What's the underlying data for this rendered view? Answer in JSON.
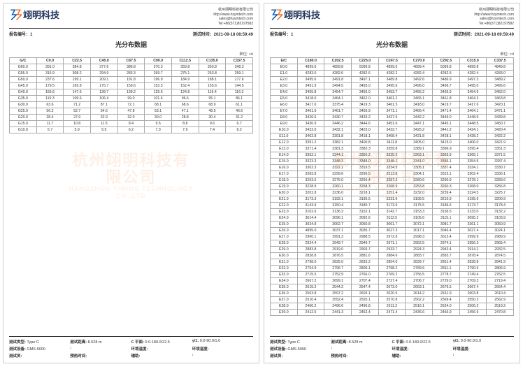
{
  "company": {
    "logo_text": "翊明科技",
    "name_full": "杭州翊明科技有限公司",
    "website": "http://www.hzymtech.com",
    "email": "sales@hzymtech.com",
    "phone": "Tel:+86(571)82197582"
  },
  "meta": {
    "report_no_label": "报告编号：",
    "report_no": "1",
    "test_time_label": "测试时间：",
    "test_time1": "2021-09-18 08:59:49",
    "test_time2": "2021-09-18 09:59:49"
  },
  "titles": {
    "left": "光分布数据",
    "right": "光分布数据",
    "unit": "单位: cd"
  },
  "watermark": {
    "zh": "杭州翊明科技有限公司",
    "en": "HANGZHOU YIMING TECHNOLOGY CO.,LTD"
  },
  "left_table": {
    "headers": [
      "G/C",
      "C0.0",
      "C22.5",
      "C45.0",
      "C67.5",
      "C90.0",
      "C112.5",
      "C135.0",
      "C157.5"
    ],
    "rows": [
      [
        "G60.0",
        "391.0",
        "384.8",
        "377.6",
        "386.8",
        "370.3",
        "359.8",
        "350.8",
        "348.3"
      ],
      [
        "G55.0",
        "316.9",
        "308.2",
        "294.9",
        "283.3",
        "269.7",
        "275.1",
        "263.8",
        "259.1"
      ],
      [
        "G50.0",
        "237.6",
        "199.1",
        "209.1",
        "191.8",
        "196.9",
        "184.9",
        "188.1",
        "177.6"
      ],
      [
        "G45.0",
        "179.5",
        "165.8",
        "175.7",
        "159.6",
        "153.3",
        "152.4",
        "155.6",
        "144.5"
      ],
      [
        "G40.0",
        "155.6",
        "147.6",
        "139.7",
        "139.2",
        "129.5",
        "124.8",
        "119.4",
        "116.3"
      ],
      [
        "G35.0",
        "110.3",
        "109.6",
        "106.4",
        "99.0",
        "101.6",
        "96.6",
        "95.1",
        "86.1"
      ],
      [
        "G30.0",
        "63.6",
        "71.2",
        "87.1",
        "72.1",
        "68.1",
        "68.6",
        "68.9",
        "61.1"
      ],
      [
        "G25.0",
        "56.2",
        "52.7",
        "54.6",
        "47.8",
        "53.1",
        "47.1",
        "48.5",
        "46.6"
      ],
      [
        "G20.0",
        "28.4",
        "27.9",
        "32.9",
        "32.0",
        "30.0",
        "28.8",
        "30.4",
        "31.2"
      ],
      [
        "G15.0",
        "11.7",
        "10.8",
        "11.5",
        "8.4",
        "9.5",
        "8.8",
        "9.6",
        "6.7"
      ],
      [
        "G10.0",
        "5.7",
        "5.9",
        "5.5",
        "6.2",
        "7.3",
        "7.9",
        "7.4",
        "6.2"
      ]
    ]
  },
  "right_table": {
    "headers": [
      "E/C",
      "C180.0",
      "C202.5",
      "C225.0",
      "C247.5",
      "C270.0",
      "C292.5",
      "C315.0",
      "C337.5"
    ],
    "rows": [
      [
        "E0.0",
        "4899.6",
        "4899.8",
        "5099.8",
        "4899.5",
        "4899.4",
        "5099.8",
        "4899.8",
        "4849.8"
      ],
      [
        "E1.0",
        "4283.0",
        "4282.6",
        "4282.6",
        "4282.2",
        "4282.4",
        "4282.5",
        "4282.4",
        "4283.0"
      ],
      [
        "E2.0",
        "3495.6",
        "3491.8",
        "3497.1",
        "3489.8",
        "3492.6",
        "3486.9",
        "3497.3",
        "3489.2"
      ],
      [
        "E3.0",
        "3491.9",
        "3494.5",
        "3493.0",
        "3495.6",
        "3495.0",
        "3496.7",
        "3495.0",
        "3495.6"
      ],
      [
        "E4.0",
        "3455.8",
        "3454.7",
        "3455.0",
        "3453.7",
        "3455.2",
        "3455.9",
        "3454.9",
        "3452.0"
      ],
      [
        "E5.0",
        "3418.0",
        "3464.1",
        "3462.0",
        "3461.2",
        "3465.1",
        "3461.8",
        "3464.3",
        "3463.8"
      ],
      [
        "E6.0",
        "3417.0",
        "3375.4",
        "3419.3",
        "3461.5",
        "3418.0",
        "3419.7",
        "3417.6",
        "3420.1"
      ],
      [
        "E7.0",
        "3461.6",
        "3461.7",
        "3459.9",
        "3471.1",
        "3466.4",
        "3471.4",
        "3464.1",
        "3471.1"
      ],
      [
        "E8.0",
        "3426.6",
        "3430.7",
        "3433.2",
        "3437.5",
        "3442.2",
        "3449.0",
        "3448.5",
        "3439.8"
      ],
      [
        "E9.0",
        "3436.9",
        "3446.2",
        "3444.6",
        "3451.6",
        "3447.1",
        "3445.1",
        "3448.5",
        "3450.7"
      ],
      [
        "E10.0",
        "3422.0",
        "3432.1",
        "3423.0",
        "3432.7",
        "3425.2",
        "3441.2",
        "3424.1",
        "3420.4"
      ],
      [
        "E11.0",
        "3402.8",
        "3391.8",
        "3418.1",
        "3408.4",
        "3421.8",
        "3428.1",
        "3428.2",
        "3422.2"
      ],
      [
        "E12.0",
        "3391.2",
        "3382.1",
        "3400.8",
        "3411.8",
        "3405.0",
        "3415.0",
        "3406.0",
        "3421.9"
      ],
      [
        "E13.0",
        "3371.4",
        "3381.3",
        "3383.3",
        "3359.8",
        "3389.1",
        "3396.9",
        "3395.4",
        "3351.3"
      ],
      [
        "E14.0",
        "3352.1",
        "3344.1",
        "3350.2",
        "3325.2",
        "3363.1",
        "3363.9",
        "3365.1",
        "3371.5"
      ],
      [
        "E15.0",
        "3323.3",
        "3348.3",
        "3348.0",
        "3348.1",
        "3341.0",
        "3356.1",
        "3354.5",
        "3337.4"
      ],
      [
        "E16.0",
        "3302.3",
        "3322.2",
        "3319.5",
        "3334.5",
        "3305.1",
        "3337.4",
        "3334.1",
        "3330.7"
      ],
      [
        "E17.0",
        "3283.8",
        "3299.6",
        "3296.5",
        "3313.8",
        "3304.1",
        "3315.1",
        "3302.4",
        "3330.1"
      ],
      [
        "E18.0",
        "3253.5",
        "3275.0",
        "3266.4",
        "3287.3",
        "3280.6",
        "3290.9",
        "3278.1",
        "3283.6"
      ],
      [
        "E19.0",
        "3228.9",
        "3260.1",
        "3258.3",
        "3268.9",
        "3253.8",
        "3260.3",
        "3268.0",
        "3256.8"
      ],
      [
        "E20.0",
        "3202.8",
        "3236.0",
        "3218.1",
        "3251.4",
        "3232.0",
        "3239.4",
        "3224.5",
        "3225.7"
      ],
      [
        "E21.0",
        "3173.3",
        "3192.1",
        "3195.5",
        "3231.6",
        "3199.5",
        "3210.9",
        "3195.6",
        "3200.9"
      ],
      [
        "E22.0",
        "3143.9",
        "3150.4",
        "3180.7",
        "3173.6",
        "3175.5",
        "3186.6",
        "3173.7",
        "3178.4"
      ],
      [
        "E23.0",
        "3102.6",
        "3136.3",
        "3152.1",
        "3142.7",
        "3153.3",
        "3156.5",
        "3133.0",
        "3132.2"
      ],
      [
        "E24.0",
        "3014.4",
        "3096.1",
        "3092.6",
        "3112.5",
        "3105.6",
        "3115.1",
        "3095.2",
        "3103.9"
      ],
      [
        "E25.0",
        "3034.8",
        "3062.7",
        "3050.8",
        "3061.7",
        "3072.1",
        "3081.7",
        "3361.1",
        "3050.9"
      ],
      [
        "E26.0",
        "4895.0",
        "3037.1",
        "3035.7",
        "3027.3",
        "3017.1",
        "3046.4",
        "3027.4",
        "3024.1"
      ],
      [
        "E27.0",
        "2960.1",
        "2991.3",
        "2988.5",
        "2972.8",
        "2998.3",
        "3013.4",
        "2999.9",
        "2989.9"
      ],
      [
        "E28.0",
        "2924.4",
        "2949.7",
        "2949.7",
        "2971.1",
        "2952.5",
        "2974.1",
        "2956.3",
        "2965.4"
      ],
      [
        "E29.0",
        "2883.8",
        "2919.0",
        "2903.7",
        "2933.7",
        "2924.3",
        "2943.4",
        "2914.2",
        "2932.5"
      ],
      [
        "E30.0",
        "2838.8",
        "2876.5",
        "2881.6",
        "2884.6",
        "2883.7",
        "2893.7",
        "2878.4",
        "2874.5"
      ],
      [
        "E31.0",
        "2798.0",
        "2835.0",
        "2833.2",
        "2854.0",
        "2839.7",
        "2851.4",
        "2838.8",
        "2841.9"
      ],
      [
        "E32.0",
        "2754.9",
        "2796.7",
        "2800.1",
        "2798.2",
        "2789.6",
        "2811.1",
        "2790.5",
        "2806.9"
      ],
      [
        "E33.0",
        "2715.5",
        "2752.9",
        "2766.0",
        "2769.2",
        "2756.5",
        "2778.7",
        "2749.4",
        "2762.5"
      ],
      [
        "E34.0",
        "2667.2",
        "2699.1",
        "2707.4",
        "2727.4",
        "2706.7",
        "2729.0",
        "2709.3",
        "2719.4"
      ],
      [
        "E35.0",
        "2615.2",
        "2544.2",
        "2547.4",
        "2673.0",
        "2663.1",
        "2676.5",
        "2667.4",
        "2664.4"
      ],
      [
        "E36.0",
        "2563.8",
        "2597.2",
        "2603.1",
        "2620.5",
        "2614.2",
        "2631.9",
        "2603.8",
        "2610.4"
      ],
      [
        "E37.0",
        "2510.4",
        "2552.4",
        "2555.1",
        "2570.8",
        "2562.2",
        "2569.4",
        "2550.2",
        "2562.9"
      ],
      [
        "E38.0",
        "2460.2",
        "2496.6",
        "2496.8",
        "2511.2",
        "2516.1",
        "2524.0",
        "2506.2",
        "2519.2"
      ],
      [
        "E39.0",
        "2412.5",
        "2441.3",
        "2452.4",
        "2471.4",
        "2436.6",
        "2466.9",
        "2456.9",
        "2470.8"
      ]
    ]
  },
  "footer": {
    "rows": [
      [
        "测试类型",
        "Type C",
        "测试距离",
        "8.528 m",
        "C 平面",
        "0.0-180.0/22.5",
        "γ/1",
        "0.0-90.0/1.0"
      ],
      [
        "测试设备",
        "GMS-5000",
        "",
        "",
        "环境温度",
        "",
        "环境温度",
        ""
      ],
      [
        "测试员",
        "",
        "预热时间",
        "",
        "辅助",
        "",
        ""
      ]
    ]
  }
}
